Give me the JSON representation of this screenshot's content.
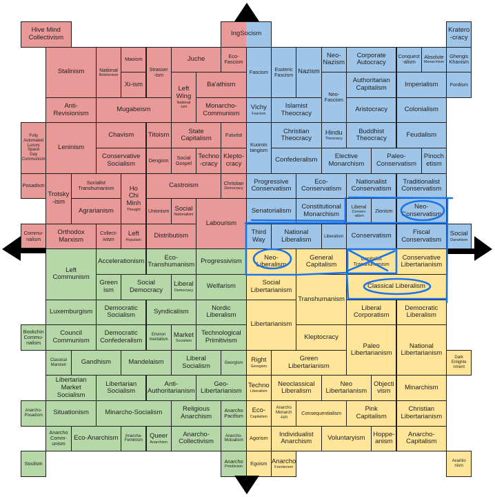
{
  "quadrant_colors": {
    "authoritarian_left": "#ea9999",
    "authoritarian_right": "#9fc5e8",
    "libertarian_left": "#b6d7a8",
    "libertarian_right": "#ffe599"
  },
  "border_color": "#1c1c1c",
  "annotation_color": "#1a73e8",
  "axes": {
    "arrows": [
      "up",
      "down",
      "left",
      "right"
    ]
  },
  "annotations": {
    "circled": [
      "Neo-Conservatism",
      "Neo-Liberalism",
      "Classical Liberalism"
    ],
    "crossed_out": [
      "Capitalist Transhumanism"
    ]
  },
  "cells": [
    {
      "label": "Hive Mind\nCollectivism",
      "sub": ""
    },
    {
      "label": "Stalinism",
      "sub": ""
    },
    {
      "label": "National",
      "sub": "Bolshevism"
    },
    {
      "label": "Maoism",
      "sub": ""
    },
    {
      "label": "Xi-ism",
      "sub": ""
    },
    {
      "label": "Strasser\n-ism",
      "sub": ""
    },
    {
      "label": "Juche",
      "sub": ""
    },
    {
      "label": "Eco-\nFascism",
      "sub": ""
    },
    {
      "label": "Left\nWing",
      "sub": "National\n-ism"
    },
    {
      "label": "Ba'athism",
      "sub": ""
    },
    {
      "label": "Anti-\nRevisionism",
      "sub": ""
    },
    {
      "label": "Mugabeism",
      "sub": ""
    },
    {
      "label": "Monarcho-\nCommunism",
      "sub": ""
    },
    {
      "label": "",
      "sub": "Fully\nAutomated\nLuxury\nSpace\nGay\nCommunism"
    },
    {
      "label": "Leninism",
      "sub": ""
    },
    {
      "label": "Chavism",
      "sub": ""
    },
    {
      "label": "Titoism",
      "sub": ""
    },
    {
      "label": "State\nCapitalism",
      "sub": ""
    },
    {
      "label": "Futurist",
      "sub": ""
    },
    {
      "label": "Conservative\nSocialism",
      "sub": ""
    },
    {
      "label": "Dengism",
      "sub": ""
    },
    {
      "label": "Social\nGospel",
      "sub": ""
    },
    {
      "label": "Techno\n-cracy",
      "sub": ""
    },
    {
      "label": "Klepto-\ncracy",
      "sub": ""
    },
    {
      "label": "Posadism",
      "sub": ""
    },
    {
      "label": "Trotsky\n-ism",
      "sub": ""
    },
    {
      "label": "Socialist\nTranshumanism",
      "sub": ""
    },
    {
      "label": "Ho\nChi\nMinh",
      "sub": "Thought"
    },
    {
      "label": "Castroism",
      "sub": ""
    },
    {
      "label": "Christian",
      "sub": "Democracy"
    },
    {
      "label": "Agrarianism",
      "sub": ""
    },
    {
      "label": "Unionism",
      "sub": ""
    },
    {
      "label": "Social",
      "sub": "Nationalism"
    },
    {
      "label": "Labourism",
      "sub": ""
    },
    {
      "label": "Commu-\nnalism",
      "sub": ""
    },
    {
      "label": "Orthodox\nMarxism",
      "sub": ""
    },
    {
      "label": "Collect-\nivism",
      "sub": ""
    },
    {
      "label": "Left",
      "sub": "Populism"
    },
    {
      "label": "Distributism",
      "sub": ""
    },
    {
      "label": "IngSocism",
      "sub": ""
    },
    {
      "label": "Kratero\n-cracy",
      "sub": ""
    },
    {
      "label": "Fascism",
      "sub": ""
    },
    {
      "label": "Esoteric\nFascism",
      "sub": ""
    },
    {
      "label": "Nazism",
      "sub": ""
    },
    {
      "label": "Neo-\nNazism",
      "sub": ""
    },
    {
      "label": "Corporate\nAutocracy",
      "sub": ""
    },
    {
      "label": "Conquest\n-alism",
      "sub": ""
    },
    {
      "label": "Absolute",
      "sub": "Monarchism"
    },
    {
      "label": "Ghengis\nKhanism",
      "sub": ""
    },
    {
      "label": "Neo-\nFascism",
      "sub": ""
    },
    {
      "label": "Authoritarian\nCapitalism",
      "sub": ""
    },
    {
      "label": "Imperialism",
      "sub": ""
    },
    {
      "label": "Fordism",
      "sub": ""
    },
    {
      "label": "Vichy",
      "sub": "Fascism"
    },
    {
      "label": "Islamist\nTheocracy",
      "sub": ""
    },
    {
      "label": "Aristocracy",
      "sub": ""
    },
    {
      "label": "Colonialism",
      "sub": ""
    },
    {
      "label": "Kuomin\ntangism",
      "sub": ""
    },
    {
      "label": "Christian\nTheocracy",
      "sub": ""
    },
    {
      "label": "Hindu",
      "sub": "Theocracy"
    },
    {
      "label": "Buddhist\nTheocracy",
      "sub": ""
    },
    {
      "label": "Feudalism",
      "sub": ""
    },
    {
      "label": "Confederalism",
      "sub": ""
    },
    {
      "label": "Elective\nMonarchism",
      "sub": ""
    },
    {
      "label": "Paleo-\nConservatism",
      "sub": ""
    },
    {
      "label": "Pinoch\netism",
      "sub": ""
    },
    {
      "label": "Progressive\nConservatism",
      "sub": ""
    },
    {
      "label": "Eco-\nConservatism",
      "sub": ""
    },
    {
      "label": "Nationalist\nConservatism",
      "sub": ""
    },
    {
      "label": "Traditionalist\nConservatism",
      "sub": ""
    },
    {
      "label": "Senatorialism",
      "sub": ""
    },
    {
      "label": "Constitutional\nMonarchism",
      "sub": ""
    },
    {
      "label": "Liberal",
      "sub": "Conserv\n-atism"
    },
    {
      "label": "Zionism",
      "sub": ""
    },
    {
      "label": "Neo-\nConservatism",
      "sub": ""
    },
    {
      "label": "Third\nWay",
      "sub": ""
    },
    {
      "label": "National\nLiberalism",
      "sub": ""
    },
    {
      "label": "",
      "sub": "Liberalism"
    },
    {
      "label": "Conservatism",
      "sub": ""
    },
    {
      "label": "Fiscal\nConservatism",
      "sub": ""
    },
    {
      "label": "Social",
      "sub": "Darwinism"
    },
    {
      "label": "Left\nCommunism",
      "sub": ""
    },
    {
      "label": "Accelerationism",
      "sub": ""
    },
    {
      "label": "Eco-\nTranshumanism",
      "sub": ""
    },
    {
      "label": "Progressivism",
      "sub": ""
    },
    {
      "label": "Green\nism",
      "sub": ""
    },
    {
      "label": "Social\nDemocracy",
      "sub": ""
    },
    {
      "label": "Liberal",
      "sub": "Democracy"
    },
    {
      "label": "Welfarism",
      "sub": ""
    },
    {
      "label": "Luxemburgism",
      "sub": ""
    },
    {
      "label": "Democratic\nSocialism",
      "sub": ""
    },
    {
      "label": "Syndicalism",
      "sub": ""
    },
    {
      "label": "Nordic\nLiberalism",
      "sub": ""
    },
    {
      "label": "Bookchin\nCommu-\nnalism",
      "sub": ""
    },
    {
      "label": "Council\nCommunism",
      "sub": ""
    },
    {
      "label": "Democratic\nConfederalism",
      "sub": ""
    },
    {
      "label": "",
      "sub": "Environ\nmentalism"
    },
    {
      "label": "Market",
      "sub": "Socialism"
    },
    {
      "label": "Technological\nPrimitivism",
      "sub": ""
    },
    {
      "label": "",
      "sub": "Classical\nMarxism"
    },
    {
      "label": "Gandhism",
      "sub": ""
    },
    {
      "label": "Mandelaism",
      "sub": ""
    },
    {
      "label": "Liberal\nSocialism",
      "sub": ""
    },
    {
      "label": "",
      "sub": "Georgism"
    },
    {
      "label": "Libertarian\nMarket Socialism",
      "sub": ""
    },
    {
      "label": "Libertarian\nSocialism",
      "sub": ""
    },
    {
      "label": "Anti-\nAuthoritarianism",
      "sub": ""
    },
    {
      "label": "Geo-\nLibertarianism",
      "sub": ""
    },
    {
      "label": "",
      "sub": "Anarcho-\nPosadism"
    },
    {
      "label": "Situationism",
      "sub": ""
    },
    {
      "label": "Minarcho-Socialism",
      "sub": ""
    },
    {
      "label": "Religious\nAnarchism",
      "sub": ""
    },
    {
      "label": "Anarcho\nPacifism",
      "sub": ""
    },
    {
      "label": "Anarcho\nComm-\nunism",
      "sub": ""
    },
    {
      "label": "Eco-Anarchism",
      "sub": ""
    },
    {
      "label": "",
      "sub": "Anarcha-\nFeminism"
    },
    {
      "label": "Queer",
      "sub": "Anarchism"
    },
    {
      "label": "Anarcho-\nCollectivism",
      "sub": ""
    },
    {
      "label": "",
      "sub": "Anarcho-\nMutualism"
    },
    {
      "label": "Soulism",
      "sub": ""
    },
    {
      "label": "Anarcho",
      "sub": "Primitivism"
    },
    {
      "label": "Neo-\nLiberalism",
      "sub": ""
    },
    {
      "label": "General\nCapitalism",
      "sub": ""
    },
    {
      "label": "Capitalist\nTranshumanism",
      "sub": ""
    },
    {
      "label": "Conservative\nLibertarianism",
      "sub": ""
    },
    {
      "label": "Social\nLibertarianism",
      "sub": ""
    },
    {
      "label": "Transhumanism",
      "sub": ""
    },
    {
      "label": "Classical Liberalism",
      "sub": ""
    },
    {
      "label": "Libertarianism",
      "sub": ""
    },
    {
      "label": "Liberal\nCorporatism",
      "sub": ""
    },
    {
      "label": "Democratic\nLiberalism",
      "sub": ""
    },
    {
      "label": "Kleptocracy",
      "sub": ""
    },
    {
      "label": "Paleo\nLibertarianism",
      "sub": ""
    },
    {
      "label": "National\nLibertarianism",
      "sub": ""
    },
    {
      "label": "Right",
      "sub": "Georgism"
    },
    {
      "label": "Green\nLibertarianism",
      "sub": ""
    },
    {
      "label": "",
      "sub": "Dark\nEnlighte\nnment"
    },
    {
      "label": "Techno",
      "sub": "Liberalism"
    },
    {
      "label": "Neoclassical\nLiberalism",
      "sub": ""
    },
    {
      "label": "Neo\nLibertarianism",
      "sub": ""
    },
    {
      "label": "Objecti\nvism",
      "sub": ""
    },
    {
      "label": "Minarchism",
      "sub": ""
    },
    {
      "label": "Eco-",
      "sub": "Capitalism"
    },
    {
      "label": "",
      "sub": "Anarcho\nMonarch\n-ism"
    },
    {
      "label": "Consequentialism",
      "sub": ""
    },
    {
      "label": "Pink\nCapitalism",
      "sub": ""
    },
    {
      "label": "Christian\nLibertarianism",
      "sub": ""
    },
    {
      "label": "Agorism",
      "sub": ""
    },
    {
      "label": "Individualist\nAnarchism",
      "sub": ""
    },
    {
      "label": "Voluntaryism",
      "sub": ""
    },
    {
      "label": "Hoppe-\nanism",
      "sub": ""
    },
    {
      "label": "Anarcho-\nCapitalism",
      "sub": ""
    },
    {
      "label": "Egoism",
      "sub": ""
    },
    {
      "label": "Anarcho",
      "sub": "Frontierism"
    },
    {
      "label": "",
      "sub": "Avaritio\nnism"
    }
  ]
}
